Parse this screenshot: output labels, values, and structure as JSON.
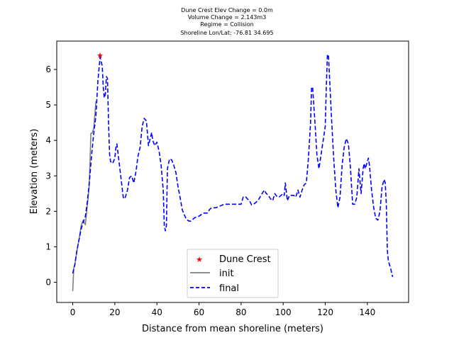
{
  "chart_data": {
    "type": "line",
    "title_lines": [
      "Dune Crest Elev Change = 0.0m",
      "Volume Change = 2.143m3",
      "Regime = Collision",
      "Shoreline Lon/Lat: -76.81 34.695"
    ],
    "xlabel": "Distance from mean shoreline (meters)",
    "ylabel": "Elevation (meters)",
    "xlim": [
      -7.6,
      159.6
    ],
    "ylim": [
      -0.57,
      6.8
    ],
    "xticks": [
      0,
      20,
      40,
      60,
      80,
      100,
      120,
      140
    ],
    "yticks": [
      0,
      1,
      2,
      3,
      4,
      5,
      6
    ],
    "xtick_labels": [
      "0",
      "20",
      "40",
      "60",
      "80",
      "100",
      "120",
      "140"
    ],
    "ytick_labels": [
      "0",
      "1",
      "2",
      "3",
      "4",
      "5",
      "6"
    ],
    "legend": {
      "position": "lower center",
      "entries": [
        "Dune Crest",
        "init",
        "final"
      ]
    },
    "series": [
      {
        "name": "init",
        "color": "#808080",
        "style": "solid",
        "points": [
          [
            0,
            -0.25
          ],
          [
            0.5,
            0.4
          ],
          [
            1,
            0.5
          ],
          [
            2,
            0.9
          ],
          [
            3,
            1.2
          ],
          [
            4,
            1.6
          ],
          [
            5,
            1.75
          ],
          [
            6,
            1.62
          ],
          [
            7,
            2.2
          ],
          [
            7.8,
            2.7
          ],
          [
            8.2,
            3.4
          ],
          [
            8.6,
            4.2
          ],
          [
            9.2,
            4.2
          ],
          [
            10,
            4.35
          ],
          [
            11,
            5.1
          ]
        ]
      },
      {
        "name": "final",
        "color": "#0000ff",
        "style": "dashed",
        "points": [
          [
            0,
            0.25
          ],
          [
            1,
            0.5
          ],
          [
            2,
            0.9
          ],
          [
            3,
            1.2
          ],
          [
            4,
            1.5
          ],
          [
            5,
            1.7
          ],
          [
            6,
            1.85
          ],
          [
            7,
            2.3
          ],
          [
            8,
            2.9
          ],
          [
            9,
            3.6
          ],
          [
            10,
            4.2
          ],
          [
            11,
            4.7
          ],
          [
            12,
            5.7
          ],
          [
            13,
            6.35
          ],
          [
            14,
            6.1
          ],
          [
            14.5,
            5.5
          ],
          [
            15,
            5.2
          ],
          [
            15.5,
            5.3
          ],
          [
            16,
            5.8
          ],
          [
            16.5,
            5.75
          ],
          [
            17,
            4.5
          ],
          [
            17.5,
            3.6
          ],
          [
            18,
            3.4
          ],
          [
            19,
            3.35
          ],
          [
            20,
            3.5
          ],
          [
            20.5,
            3.8
          ],
          [
            21,
            3.9
          ],
          [
            22,
            3.4
          ],
          [
            23,
            2.9
          ],
          [
            24,
            2.4
          ],
          [
            24.5,
            2.35
          ],
          [
            25,
            2.4
          ],
          [
            26,
            2.6
          ],
          [
            27,
            2.95
          ],
          [
            28,
            3.0
          ],
          [
            29,
            2.8
          ],
          [
            30,
            3.1
          ],
          [
            31,
            3.55
          ],
          [
            32,
            3.8
          ],
          [
            33,
            4.4
          ],
          [
            34,
            4.62
          ],
          [
            35,
            4.55
          ],
          [
            36,
            3.85
          ],
          [
            37,
            4.1
          ],
          [
            37.5,
            4.22
          ],
          [
            38,
            4.0
          ],
          [
            39,
            3.85
          ],
          [
            40,
            3.95
          ],
          [
            41,
            3.7
          ],
          [
            42,
            3.3
          ],
          [
            43,
            2.6
          ],
          [
            43.5,
            1.6
          ],
          [
            44,
            1.45
          ],
          [
            44.5,
            1.6
          ],
          [
            45,
            3.2
          ],
          [
            46,
            3.48
          ],
          [
            47,
            3.45
          ],
          [
            48,
            3.3
          ],
          [
            49,
            3.1
          ],
          [
            50,
            2.7
          ],
          [
            51,
            2.4
          ],
          [
            52,
            2.05
          ],
          [
            53,
            1.9
          ],
          [
            54,
            1.78
          ],
          [
            55,
            1.73
          ],
          [
            56,
            1.72
          ],
          [
            58,
            1.82
          ],
          [
            60,
            1.86
          ],
          [
            62,
            1.95
          ],
          [
            64,
            1.95
          ],
          [
            65,
            2.05
          ],
          [
            66,
            2.1
          ],
          [
            68,
            2.1
          ],
          [
            70,
            2.15
          ],
          [
            72,
            2.2
          ],
          [
            74,
            2.2
          ],
          [
            76,
            2.2
          ],
          [
            78,
            2.2
          ],
          [
            80,
            2.2
          ],
          [
            81,
            2.4
          ],
          [
            82,
            2.42
          ],
          [
            83,
            2.35
          ],
          [
            84,
            2.3
          ],
          [
            85,
            2.18
          ],
          [
            86,
            2.2
          ],
          [
            88,
            2.3
          ],
          [
            90,
            2.5
          ],
          [
            91,
            2.6
          ],
          [
            92,
            2.5
          ],
          [
            93,
            2.45
          ],
          [
            94,
            2.35
          ],
          [
            95,
            2.3
          ],
          [
            96,
            2.5
          ],
          [
            97,
            2.42
          ],
          [
            98,
            2.4
          ],
          [
            99,
            2.45
          ],
          [
            100,
            2.5
          ],
          [
            100.5,
            2.45
          ],
          [
            101,
            2.8
          ],
          [
            102,
            2.3
          ],
          [
            103,
            2.45
          ],
          [
            105,
            2.45
          ],
          [
            106,
            2.4
          ],
          [
            107,
            2.6
          ],
          [
            108,
            2.4
          ],
          [
            109,
            2.6
          ],
          [
            110,
            2.75
          ],
          [
            111,
            2.8
          ],
          [
            112,
            3.5
          ],
          [
            113,
            4.5
          ],
          [
            113.5,
            5.5
          ],
          [
            114,
            5.5
          ],
          [
            115,
            4.6
          ],
          [
            116,
            3.6
          ],
          [
            117,
            3.2
          ],
          [
            118,
            3.6
          ],
          [
            119,
            4.0
          ],
          [
            120,
            4.4
          ],
          [
            120.5,
            5.5
          ],
          [
            121,
            6.4
          ],
          [
            121.5,
            6.42
          ],
          [
            122,
            5.8
          ],
          [
            123,
            4.6
          ],
          [
            124,
            3.5
          ],
          [
            125,
            2.6
          ],
          [
            126,
            2.1
          ],
          [
            127,
            2.4
          ],
          [
            128,
            3.3
          ],
          [
            129,
            3.8
          ],
          [
            130,
            4.05
          ],
          [
            131,
            3.9
          ],
          [
            132,
            3.2
          ],
          [
            133,
            2.2
          ],
          [
            134,
            2.2
          ],
          [
            135,
            2.4
          ],
          [
            136,
            3.2
          ],
          [
            137,
            2.5
          ],
          [
            138,
            3.2
          ],
          [
            138.5,
            3.35
          ],
          [
            139,
            3.2
          ],
          [
            140,
            3.4
          ],
          [
            140.5,
            3.5
          ],
          [
            141,
            3.3
          ],
          [
            142,
            2.6
          ],
          [
            143,
            2.1
          ],
          [
            144,
            1.8
          ],
          [
            145,
            1.75
          ],
          [
            146,
            2.0
          ],
          [
            147,
            2.7
          ],
          [
            148,
            2.9
          ],
          [
            148.5,
            2.8
          ],
          [
            149,
            2.2
          ],
          [
            149.5,
            0.9
          ],
          [
            150,
            0.6
          ],
          [
            151,
            0.4
          ],
          [
            152,
            0.15
          ]
        ]
      }
    ],
    "markers": [
      {
        "name": "Dune Crest",
        "color": "#ff0000",
        "shape": "star",
        "x": 13,
        "y": 6.4
      }
    ]
  }
}
